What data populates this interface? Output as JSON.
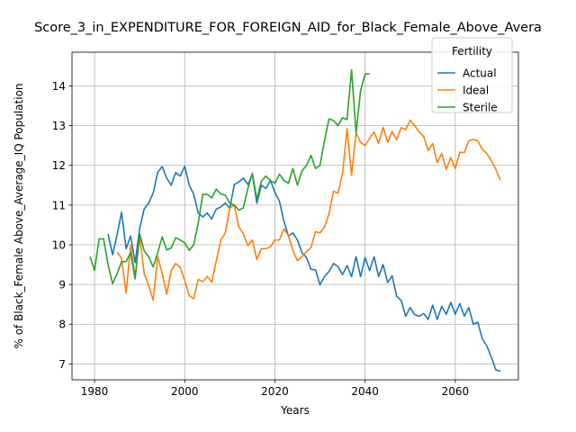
{
  "chart_data": {
    "type": "line",
    "title": "Score_3_in_EXPENDITURE_FOR_FOREIGN_AID_for_Black_Female_Above_Avera",
    "xlabel": "Years",
    "ylabel": "% of Black_Female Above_Average_IQ Population",
    "xlim": [
      1975,
      2074
    ],
    "ylim": [
      6.6,
      14.85
    ],
    "xticks": [
      "1980",
      "2000",
      "2020",
      "2040",
      "2060"
    ],
    "yticks": [
      "7",
      "8",
      "9",
      "10",
      "11",
      "12",
      "13",
      "14"
    ],
    "grid": true,
    "legend": {
      "title": "Fertility",
      "placement": "top-right"
    },
    "colors": {
      "Actual": "#1f77b4",
      "Ideal": "#ff7f0e",
      "Sterile": "#2ca02c"
    },
    "series": [
      {
        "name": "Actual",
        "x": [
          1983,
          1984,
          1985,
          1986,
          1987,
          1988,
          1989,
          1990,
          1991,
          1992,
          1993,
          1994,
          1995,
          1996,
          1997,
          1998,
          1999,
          2000,
          2001,
          2002,
          2003,
          2004,
          2005,
          2006,
          2007,
          2008,
          2009,
          2010,
          2011,
          2012,
          2013,
          2014,
          2015,
          2016,
          2017,
          2018,
          2019,
          2020,
          2021,
          2022,
          2023,
          2024,
          2025,
          2026,
          2027,
          2028,
          2029,
          2030,
          2031,
          2032,
          2033,
          2034,
          2035,
          2036,
          2037,
          2038,
          2039,
          2040,
          2041,
          2042,
          2043,
          2044,
          2045,
          2046,
          2047,
          2048,
          2049,
          2050,
          2051,
          2052,
          2053,
          2054,
          2055,
          2056,
          2057,
          2058,
          2059,
          2060,
          2061,
          2062,
          2063,
          2064,
          2065,
          2066,
          2067,
          2068,
          2069,
          2070
        ],
        "values": [
          10.27,
          9.75,
          10.25,
          10.82,
          9.9,
          10.22,
          9.55,
          10.4,
          10.9,
          11.05,
          11.3,
          11.82,
          11.97,
          11.68,
          11.5,
          11.82,
          11.73,
          11.98,
          11.5,
          11.27,
          10.8,
          10.7,
          10.8,
          10.65,
          10.9,
          10.95,
          11.05,
          10.92,
          11.52,
          11.58,
          11.68,
          11.52,
          11.77,
          11.05,
          11.5,
          11.42,
          11.62,
          11.32,
          11.1,
          10.6,
          10.22,
          10.3,
          10.12,
          9.8,
          9.68,
          9.38,
          9.37,
          8.99,
          9.2,
          9.33,
          9.53,
          9.45,
          9.25,
          9.48,
          9.2,
          9.7,
          9.2,
          9.68,
          9.35,
          9.7,
          9.2,
          9.5,
          9.05,
          9.22,
          8.7,
          8.6,
          8.2,
          8.42,
          8.24,
          8.2,
          8.27,
          8.12,
          8.48,
          8.12,
          8.45,
          8.25,
          8.55,
          8.25,
          8.52,
          8.2,
          8.42,
          8.0,
          8.05,
          7.63,
          7.45,
          7.17,
          6.85,
          6.82
        ]
      },
      {
        "name": "Ideal",
        "x": [
          1985,
          1986,
          1987,
          1988,
          1989,
          1990,
          1991,
          1992,
          1993,
          1994,
          1995,
          1996,
          1997,
          1998,
          1999,
          2000,
          2001,
          2002,
          2003,
          2004,
          2005,
          2006,
          2007,
          2008,
          2009,
          2010,
          2011,
          2012,
          2013,
          2014,
          2015,
          2016,
          2017,
          2018,
          2019,
          2020,
          2021,
          2022,
          2023,
          2024,
          2025,
          2026,
          2027,
          2028,
          2029,
          2030,
          2031,
          2032,
          2033,
          2034,
          2035,
          2036,
          2037,
          2038,
          2039,
          2040,
          2041,
          2042,
          2043,
          2044,
          2045,
          2046,
          2047,
          2048,
          2049,
          2050,
          2051,
          2052,
          2053,
          2054,
          2055,
          2056,
          2057,
          2058,
          2059,
          2060,
          2061,
          2062,
          2063,
          2064,
          2065,
          2066,
          2067,
          2068,
          2069,
          2070
        ],
        "values": [
          9.82,
          9.65,
          8.78,
          9.98,
          9.18,
          10.22,
          9.28,
          8.98,
          8.6,
          9.7,
          9.28,
          8.76,
          9.35,
          9.53,
          9.43,
          9.1,
          8.72,
          8.64,
          9.13,
          9.07,
          9.2,
          9.06,
          9.6,
          10.12,
          10.3,
          10.92,
          11.0,
          10.45,
          10.28,
          9.98,
          10.12,
          9.63,
          9.9,
          9.9,
          9.95,
          10.12,
          10.12,
          10.4,
          10.23,
          9.85,
          9.6,
          9.7,
          9.83,
          9.93,
          10.33,
          10.3,
          10.45,
          10.78,
          11.35,
          11.3,
          11.8,
          12.92,
          11.75,
          12.82,
          12.58,
          12.5,
          12.68,
          12.84,
          12.55,
          12.96,
          12.58,
          12.85,
          12.65,
          12.95,
          12.9,
          13.14,
          13.0,
          12.84,
          12.73,
          12.37,
          12.55,
          12.07,
          12.3,
          11.9,
          12.2,
          11.92,
          12.33,
          12.32,
          12.62,
          12.65,
          12.62,
          12.4,
          12.3,
          12.12,
          11.9,
          11.63
        ]
      },
      {
        "name": "Sterile",
        "x": [
          1979,
          1980,
          1981,
          1982,
          1983,
          1984,
          1985,
          1986,
          1987,
          1988,
          1989,
          1990,
          1991,
          1992,
          1993,
          1994,
          1995,
          1996,
          1997,
          1998,
          1999,
          2000,
          2001,
          2002,
          2003,
          2004,
          2005,
          2006,
          2007,
          2008,
          2009,
          2010,
          2011,
          2012,
          2013,
          2014,
          2015,
          2016,
          2017,
          2018,
          2019,
          2020,
          2021,
          2022,
          2023,
          2024,
          2025,
          2026,
          2027,
          2028,
          2029,
          2030,
          2031,
          2032,
          2033,
          2034,
          2035,
          2036,
          2037,
          2038,
          2039,
          2040,
          2041
        ],
        "values": [
          9.7,
          9.35,
          10.15,
          10.15,
          9.5,
          9.02,
          9.27,
          9.57,
          9.58,
          9.8,
          9.14,
          10.28,
          9.85,
          9.7,
          9.44,
          9.8,
          10.2,
          9.87,
          9.92,
          10.18,
          10.12,
          10.05,
          9.86,
          10.0,
          10.55,
          11.27,
          11.27,
          11.18,
          11.4,
          11.28,
          11.25,
          11.05,
          11.0,
          10.87,
          10.93,
          11.42,
          11.8,
          11.15,
          11.6,
          11.73,
          11.62,
          11.55,
          11.78,
          11.62,
          11.55,
          11.92,
          11.5,
          11.86,
          12.0,
          12.25,
          11.92,
          12.0,
          12.62,
          13.17,
          13.13,
          13.0,
          13.2,
          13.15,
          14.4,
          12.82,
          13.88,
          14.3,
          14.3
        ]
      }
    ]
  }
}
